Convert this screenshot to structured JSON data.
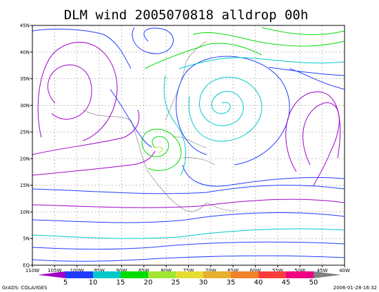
{
  "title": "DLM wind 2005070818 alldrop 00h",
  "x_axis": {
    "ticks": [
      "110W",
      "105W",
      "100W",
      "95W",
      "90W",
      "85W",
      "80W",
      "75W",
      "70W",
      "65W",
      "60W",
      "55W",
      "50W",
      "45W",
      "40W"
    ]
  },
  "y_axis": {
    "ticks": [
      "EQ",
      "5N",
      "10N",
      "15N",
      "20N",
      "25N",
      "30N",
      "35N",
      "40N",
      "45N"
    ]
  },
  "colorbar": {
    "labels": [
      "5",
      "10",
      "15",
      "20",
      "25",
      "30",
      "35",
      "40",
      "45",
      "50"
    ],
    "colors": [
      "#a000c8",
      "#1e3cff",
      "#00c8c8",
      "#00dc00",
      "#a0e632",
      "#e6dc32",
      "#e6af2d",
      "#f08228",
      "#fa3c3c",
      "#f00082",
      "#808080"
    ]
  },
  "footer": {
    "left": "GrADS: COLA/IGES",
    "right": "2006-01-28-16:32"
  }
}
